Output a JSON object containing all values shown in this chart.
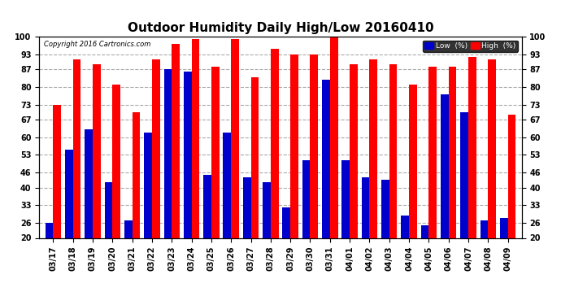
{
  "title": "Outdoor Humidity Daily High/Low 20160410",
  "copyright": "Copyright 2016 Cartronics.com",
  "categories": [
    "03/17",
    "03/18",
    "03/19",
    "03/20",
    "03/21",
    "03/22",
    "03/23",
    "03/24",
    "03/25",
    "03/26",
    "03/27",
    "03/28",
    "03/29",
    "03/30",
    "03/31",
    "04/01",
    "04/02",
    "04/03",
    "04/04",
    "04/05",
    "04/06",
    "04/07",
    "04/08",
    "04/09"
  ],
  "high": [
    73,
    91,
    89,
    81,
    70,
    91,
    97,
    99,
    88,
    99,
    84,
    95,
    93,
    93,
    100,
    89,
    91,
    89,
    81,
    88,
    88,
    92,
    91,
    69
  ],
  "low": [
    26,
    55,
    63,
    42,
    27,
    62,
    87,
    86,
    45,
    62,
    44,
    42,
    32,
    51,
    83,
    51,
    44,
    43,
    29,
    25,
    77,
    70,
    27,
    28
  ],
  "high_color": "#ff0000",
  "low_color": "#0000cc",
  "bg_color": "#ffffff",
  "grid_color": "#aaaaaa",
  "ylim": [
    20,
    100
  ],
  "yticks": [
    20,
    26,
    33,
    40,
    46,
    53,
    60,
    67,
    73,
    80,
    87,
    93,
    100
  ],
  "bar_width": 0.4,
  "title_fontsize": 11,
  "tick_fontsize": 7,
  "legend_low_label": "Low  (%)",
  "legend_high_label": "High  (%)"
}
